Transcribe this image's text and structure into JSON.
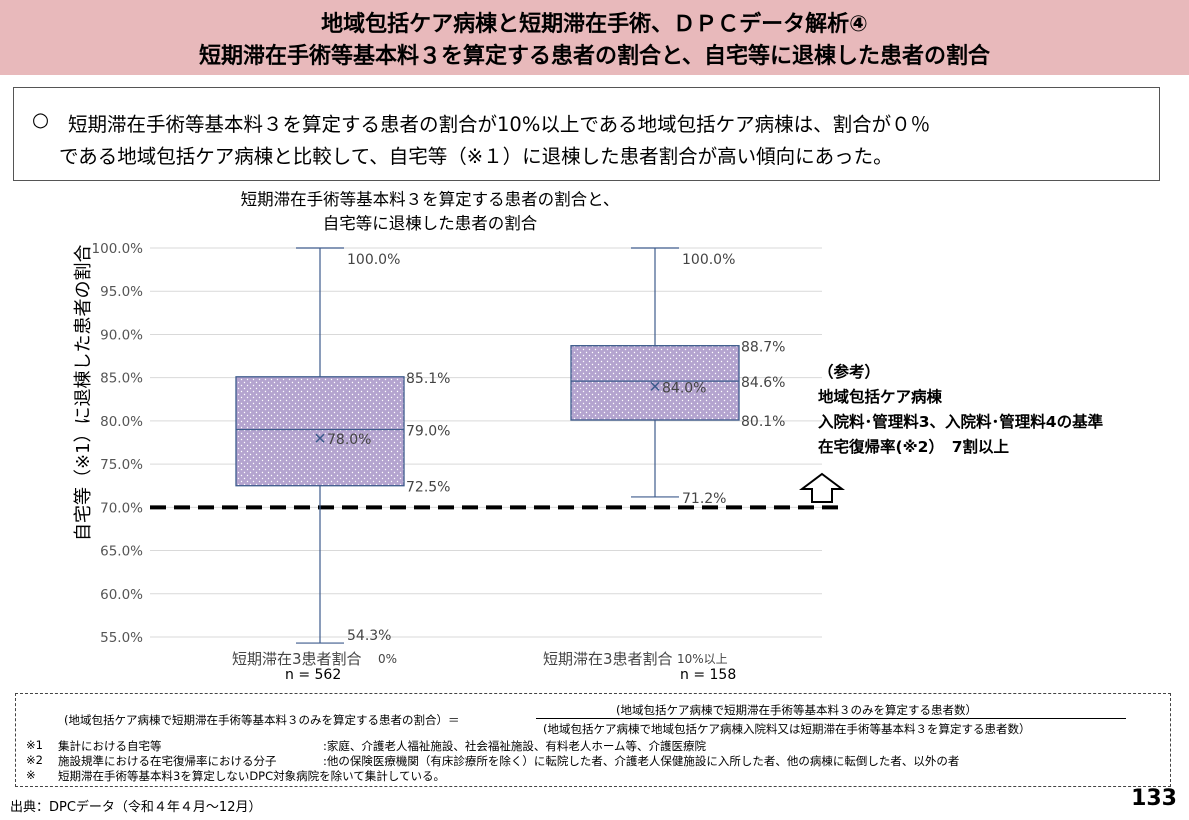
{
  "header": {
    "line1": "地域包括ケア病棟と短期滞在手術、ＤＰＣデータ解析④",
    "line2": "短期滞在手術等基本料３を算定する患者の割合と、自宅等に退棟した患者の割合"
  },
  "summary": {
    "bullet": "○",
    "line1": "短期滞在手術等基本料３を算定する患者の割合が10%以上である地域包括ケア病棟は、割合が０％",
    "line2": "である地域包括ケア病棟と比較して、自宅等（※１）に退棟した患者割合が高い傾向にあった。"
  },
  "chart_data": {
    "type": "boxplot",
    "title_line1": "短期滞在手術等基本料３を算定する患者の割合と、",
    "title_line2": "自宅等に退棟した患者の割合",
    "ylabel": "自宅等（※1）に退棟した患者の割合",
    "ylim": [
      55.0,
      100.0
    ],
    "yticks": [
      "100.0%",
      "95.0%",
      "90.0%",
      "85.0%",
      "80.0%",
      "75.0%",
      "70.0%",
      "65.0%",
      "60.0%",
      "55.0%"
    ],
    "reference_line": 70.0,
    "categories": [
      {
        "label": "短期滞在3患者割合",
        "suffix": "0%",
        "n": "n = 562",
        "min": 54.3,
        "q1": 72.5,
        "median": 79.0,
        "mean": 78.0,
        "q3": 85.1,
        "max": 100.0,
        "labels": {
          "min": "54.3%",
          "q1": "72.5%",
          "median": "79.0%",
          "mean": "78.0%",
          "q3": "85.1%",
          "max": "100.0%"
        }
      },
      {
        "label": "短期滞在3患者割合",
        "suffix": "10%以上",
        "n": "n = 158",
        "min": 71.2,
        "q1": 80.1,
        "median": 84.6,
        "mean": 84.0,
        "q3": 88.7,
        "max": 100.0,
        "labels": {
          "min": "71.2%",
          "q1": "80.1%",
          "median": "84.6%",
          "mean": "84.0%",
          "q3": "88.7%",
          "max": "100.0%"
        }
      }
    ],
    "colors": {
      "box_fill": "#b4a4cf",
      "box_stroke": "#3d5b8c",
      "whisker": "#3d5b8c",
      "dots": "#ffffff"
    }
  },
  "reference": {
    "title": "（参考）",
    "line1": "地域包括ケア病棟",
    "line2": "入院料･管理料3、入院料･管理料4の基準",
    "line3": "在宅復帰率(※2）　7割以上"
  },
  "footnotes": {
    "formula_left": "(地域包括ケア病棟で短期滞在手術等基本料３のみを算定する患者の割合）＝",
    "formula_num": "(地域包括ケア病棟で短期滞在手術等基本料３のみを算定する患者数）",
    "formula_den": "(地域包括ケア病棟で地域包括ケア病棟入院料又は短期滞在手術等基本料３を算定する患者数）",
    "n1_mark": "※1",
    "n1_label": "集計における自宅等",
    "n1_value": ":家庭、介護老人福祉施設、社会福祉施設、有料老人ホーム等、介護医療院",
    "n2_mark": "※2",
    "n2_label": "施設規準における在宅復帰率における分子",
    "n2_value": ":他の保険医療機関（有床診療所を除く）に転院した者、介護老人保健施設に入所した者、他の病棟に転倒した者、以外の者",
    "n3_mark": "※",
    "n3_text": "短期滞在手術等基本料3を算定しないDPC対象病院を除いて集計している。"
  },
  "source": "出典：DPCデータ（令和４年４月～12月）",
  "page_number": "133"
}
